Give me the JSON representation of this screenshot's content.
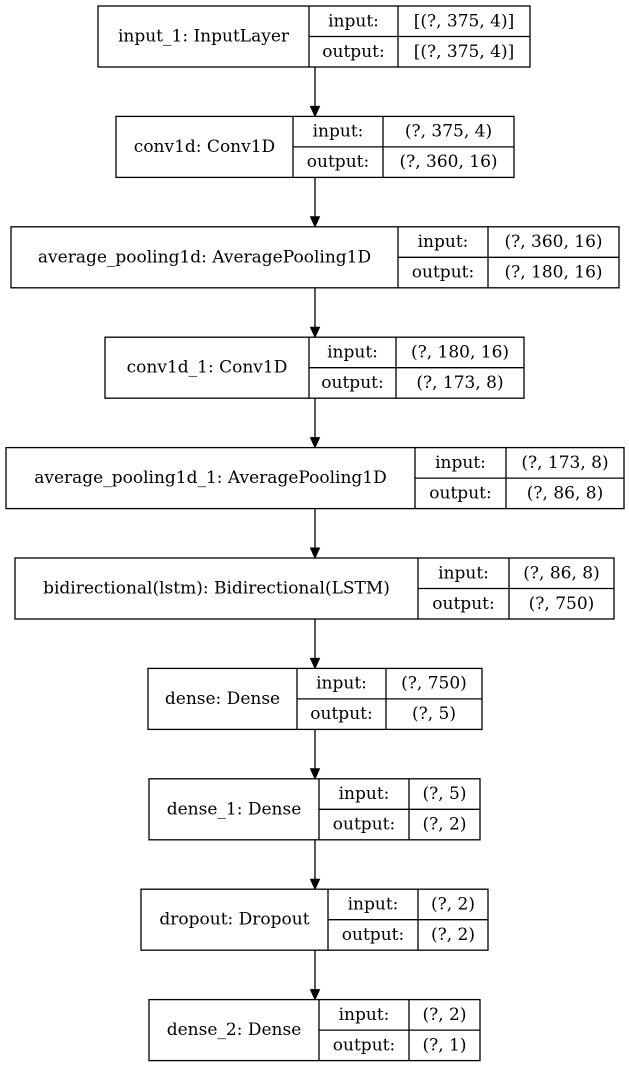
{
  "port_labels": {
    "input": "input:",
    "output": "output:"
  },
  "layers": [
    {
      "name": "input_1: InputLayer",
      "input": "[(?, 375, 4)]",
      "output": "[(?, 375, 4)]"
    },
    {
      "name": "conv1d: Conv1D",
      "input": "(?, 375, 4)",
      "output": "(?, 360, 16)"
    },
    {
      "name": "average_pooling1d: AveragePooling1D",
      "input": "(?, 360, 16)",
      "output": "(?, 180, 16)"
    },
    {
      "name": "conv1d_1: Conv1D",
      "input": "(?, 180, 16)",
      "output": "(?, 173, 8)"
    },
    {
      "name": "average_pooling1d_1: AveragePooling1D",
      "input": "(?, 173, 8)",
      "output": "(?, 86, 8)"
    },
    {
      "name": "bidirectional(lstm): Bidirectional(LSTM)",
      "input": "(?, 86, 8)",
      "output": "(?, 750)"
    },
    {
      "name": "dense: Dense",
      "input": "(?, 750)",
      "output": "(?, 5)"
    },
    {
      "name": "dense_1: Dense",
      "input": "(?, 5)",
      "output": "(?, 2)"
    },
    {
      "name": "dropout: Dropout",
      "input": "(?, 2)",
      "output": "(?, 2)"
    },
    {
      "name": "dense_2: Dense",
      "input": "(?, 2)",
      "output": "(?, 1)"
    }
  ]
}
